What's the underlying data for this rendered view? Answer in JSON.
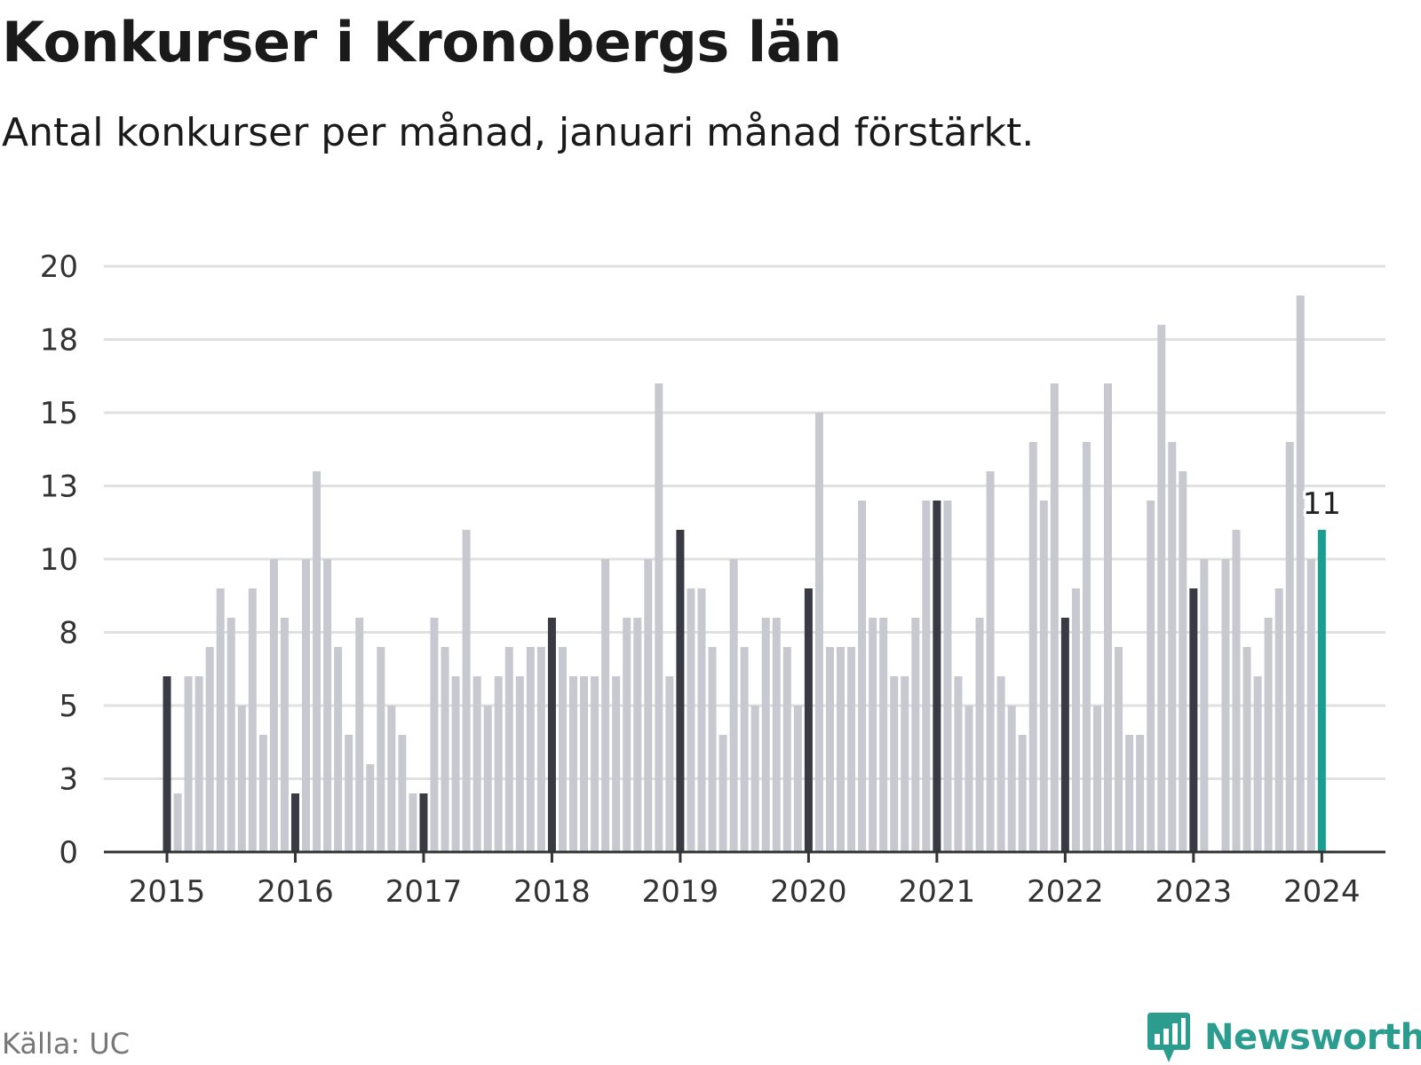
{
  "title": "Konkurser i Kronobergs län",
  "subtitle": "Antal konkurser per månad, januari månad förstärkt.",
  "source": "Källa: UC",
  "brand": {
    "name": "Newsworthy",
    "icon": "bar-chart-speech-bubble-icon"
  },
  "colors": {
    "bar": "#c8c8d0",
    "january": "#3a3a44",
    "highlight": "#1a9e91",
    "grid": "#e0e0e0",
    "axis": "#333333"
  },
  "chart_data": {
    "type": "bar",
    "x_tick_labels": [
      "2015",
      "2016",
      "2017",
      "2018",
      "2019",
      "2020",
      "2021",
      "2022",
      "2023",
      "2024"
    ],
    "y_tick_labels": [
      "0",
      "3",
      "5",
      "8",
      "10",
      "13",
      "15",
      "18",
      "20"
    ],
    "ylim": [
      0,
      20
    ],
    "grid": true,
    "highlight_label": "11",
    "series": [
      {
        "values": [
          6,
          2,
          6,
          6,
          7,
          9,
          8,
          5,
          9,
          4,
          10,
          8,
          2,
          10,
          13,
          10,
          7,
          4,
          8,
          3,
          7,
          5,
          4,
          2,
          2,
          8,
          7,
          6,
          11,
          6,
          5,
          6,
          7,
          6,
          7,
          7,
          8,
          7,
          6,
          6,
          6,
          10,
          6,
          8,
          8,
          10,
          16,
          6,
          11,
          9,
          9,
          7,
          4,
          10,
          7,
          5,
          8,
          8,
          7,
          5,
          9,
          15,
          7,
          7,
          7,
          12,
          8,
          8,
          6,
          6,
          8,
          12,
          12,
          12,
          6,
          5,
          8,
          13,
          6,
          5,
          4,
          14,
          12,
          16,
          8,
          9,
          14,
          5,
          16,
          7,
          4,
          4,
          12,
          18,
          14,
          13,
          9,
          10,
          0,
          10,
          11,
          7,
          6,
          8,
          9,
          14,
          19,
          10,
          11
        ]
      }
    ]
  }
}
